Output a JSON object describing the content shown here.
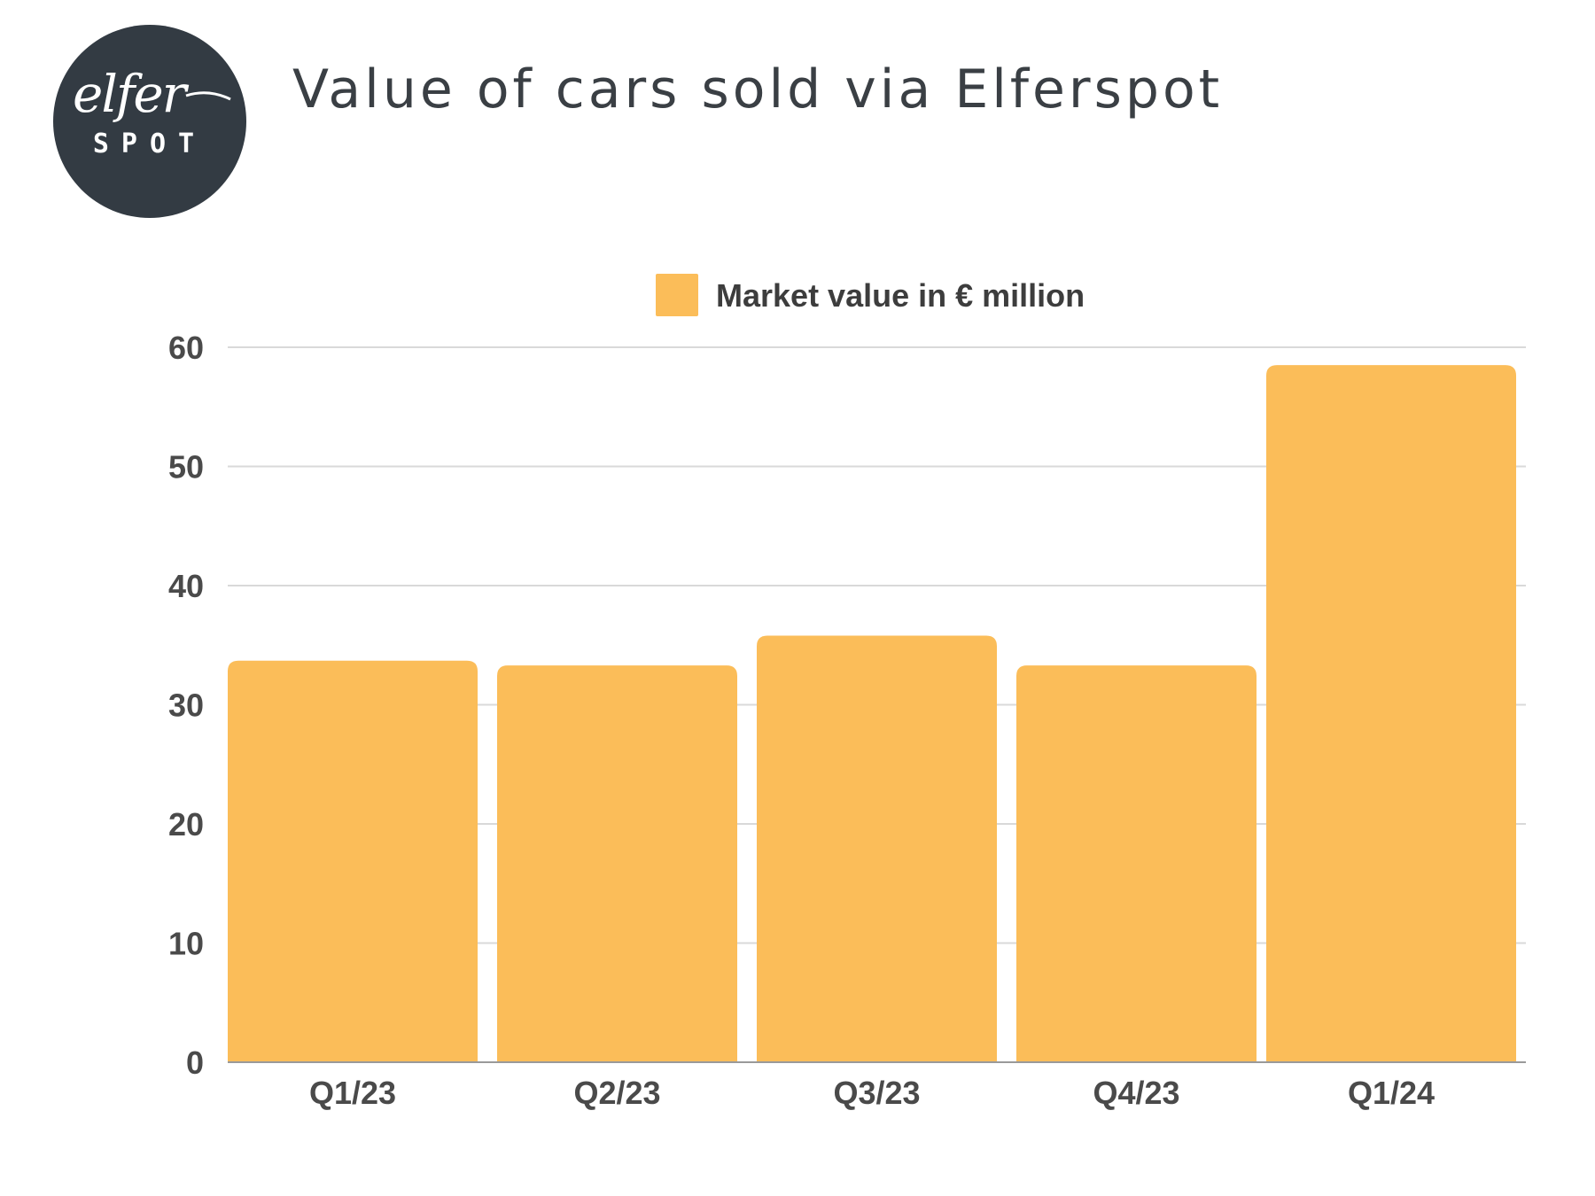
{
  "header": {
    "title": "Value of cars sold via Elferspot",
    "logo": {
      "icon": "elferspot-logo",
      "script_text": "elfer",
      "word_text": "SPOT",
      "background": "#333b43",
      "foreground": "#ffffff"
    }
  },
  "chart_data": {
    "type": "bar",
    "title": "Value of cars sold via Elferspot",
    "categories": [
      "Q1/23",
      "Q2/23",
      "Q3/23",
      "Q4/23",
      "Q1/24"
    ],
    "series": [
      {
        "name": "Market value in € million",
        "values": [
          33.7,
          33.3,
          35.8,
          33.3,
          58.5
        ],
        "color": "#fbbd59"
      }
    ],
    "yticks": [
      0,
      10,
      20,
      30,
      40,
      50,
      60
    ],
    "ylim": [
      0,
      60
    ],
    "xlabel": "",
    "ylabel": "",
    "grid": true,
    "legend": "top-center"
  }
}
